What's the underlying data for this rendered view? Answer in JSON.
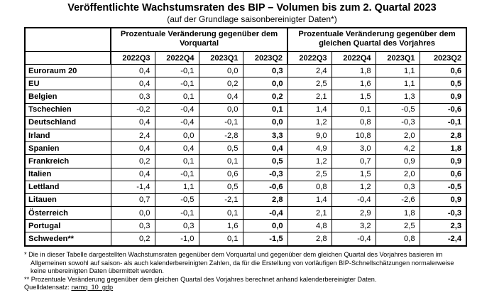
{
  "title": "Veröffentlichte Wachstumsraten des BIP – Volumen bis zum 2. Quartal 2023",
  "subtitle": "(auf der Grundlage saisonbereinigter Daten*)",
  "group_headers": [
    "Prozentuale Veränderung gegenüber dem Vorquartal",
    "Prozentuale Veränderung gegenüber dem gleichen Quartal des Vorjahres"
  ],
  "quarters": [
    "2022Q3",
    "2022Q4",
    "2023Q1",
    "2023Q2",
    "2022Q3",
    "2022Q4",
    "2023Q1",
    "2023Q2"
  ],
  "rows": [
    {
      "country": "Euroraum 20",
      "values": [
        "0,4",
        "-0,1",
        "0,0",
        "0,3",
        "2,4",
        "1,8",
        "1,1",
        "0,6"
      ]
    },
    {
      "country": "EU",
      "values": [
        "0,4",
        "-0,1",
        "0,2",
        "0,0",
        "2,5",
        "1,6",
        "1,1",
        "0,5"
      ]
    },
    {
      "country": "Belgien",
      "values": [
        "0,3",
        "0,1",
        "0,4",
        "0,2",
        "2,1",
        "1,5",
        "1,3",
        "0,9"
      ]
    },
    {
      "country": "Tschechien",
      "values": [
        "-0,2",
        "-0,4",
        "0,0",
        "0,1",
        "1,4",
        "0,1",
        "-0,5",
        "-0,6"
      ]
    },
    {
      "country": "Deutschland",
      "values": [
        "0,4",
        "-0,4",
        "-0,1",
        "0,0",
        "1,2",
        "0,8",
        "-0,3",
        "-0,1"
      ]
    },
    {
      "country": "Irland",
      "values": [
        "2,4",
        "0,0",
        "-2,8",
        "3,3",
        "9,0",
        "10,8",
        "2,0",
        "2,8"
      ]
    },
    {
      "country": "Spanien",
      "values": [
        "0,4",
        "0,4",
        "0,5",
        "0,4",
        "4,9",
        "3,0",
        "4,2",
        "1,8"
      ]
    },
    {
      "country": "Frankreich",
      "values": [
        "0,2",
        "0,1",
        "0,1",
        "0,5",
        "1,2",
        "0,7",
        "0,9",
        "0,9"
      ]
    },
    {
      "country": "Italien",
      "values": [
        "0,4",
        "-0,1",
        "0,6",
        "-0,3",
        "2,5",
        "1,5",
        "2,0",
        "0,6"
      ]
    },
    {
      "country": "Lettland",
      "values": [
        "-1,4",
        "1,1",
        "0,5",
        "-0,6",
        "0,8",
        "1,2",
        "0,3",
        "-0,5"
      ]
    },
    {
      "country": "Litauen",
      "values": [
        "0,7",
        "-0,5",
        "-2,1",
        "2,8",
        "1,4",
        "-0,4",
        "-2,6",
        "0,9"
      ]
    },
    {
      "country": "Österreich",
      "values": [
        "0,0",
        "-0,1",
        "0,1",
        "-0,4",
        "2,1",
        "2,9",
        "1,8",
        "-0,3"
      ]
    },
    {
      "country": "Portugal",
      "values": [
        "0,3",
        "0,3",
        "1,6",
        "0,0",
        "4,8",
        "3,2",
        "2,5",
        "2,3"
      ]
    },
    {
      "country": "Schweden**",
      "values": [
        "0,2",
        "-1,0",
        "0,1",
        "-1,5",
        "2,8",
        "-0,4",
        "0,8",
        "-2,4"
      ]
    }
  ],
  "notes": {
    "note1": "* Die in dieser Tabelle dargestellten Wachstumsraten gegenüber dem Vorquartal und gegenüber dem gleichen Quartal des Vorjahres basieren im Allgemeinen sowohl auf saison- als auch kalenderbereinigten Zahlen, da für die Erstellung von vorläufigen BIP-Schnellschätzungen normalerweise keine unbereinigten Daten übermittelt werden.",
    "note2": "** Prozentuale Veränderung gegenüber dem gleichen Quartal des Vorjahres berechnet anhand kalenderbereinigter Daten.",
    "source_label": "Quelldatensatz:",
    "source_link": "namq_10_gdp"
  }
}
